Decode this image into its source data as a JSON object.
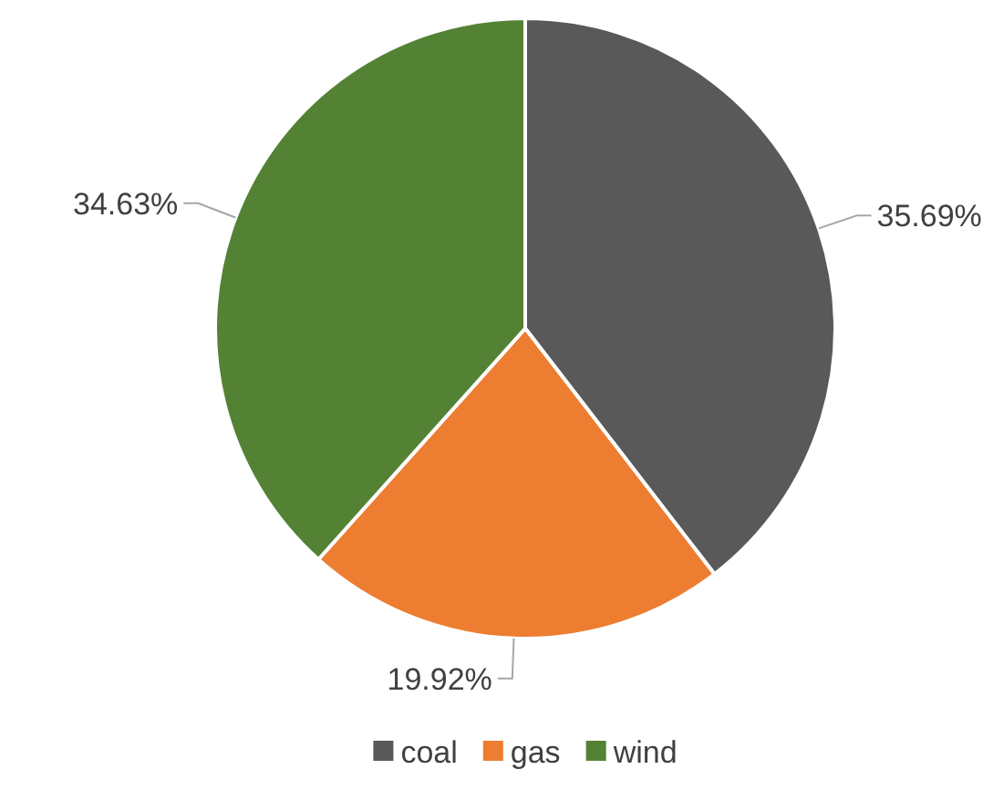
{
  "chart_data": {
    "type": "pie",
    "categories": [
      "coal",
      "gas",
      "wind"
    ],
    "values": [
      35.69,
      19.92,
      34.63
    ],
    "value_labels": [
      "35.69%",
      "19.92%",
      "34.63%"
    ],
    "colors": [
      "#595959",
      "#ed7d31",
      "#548235"
    ],
    "legend": "bottom"
  }
}
